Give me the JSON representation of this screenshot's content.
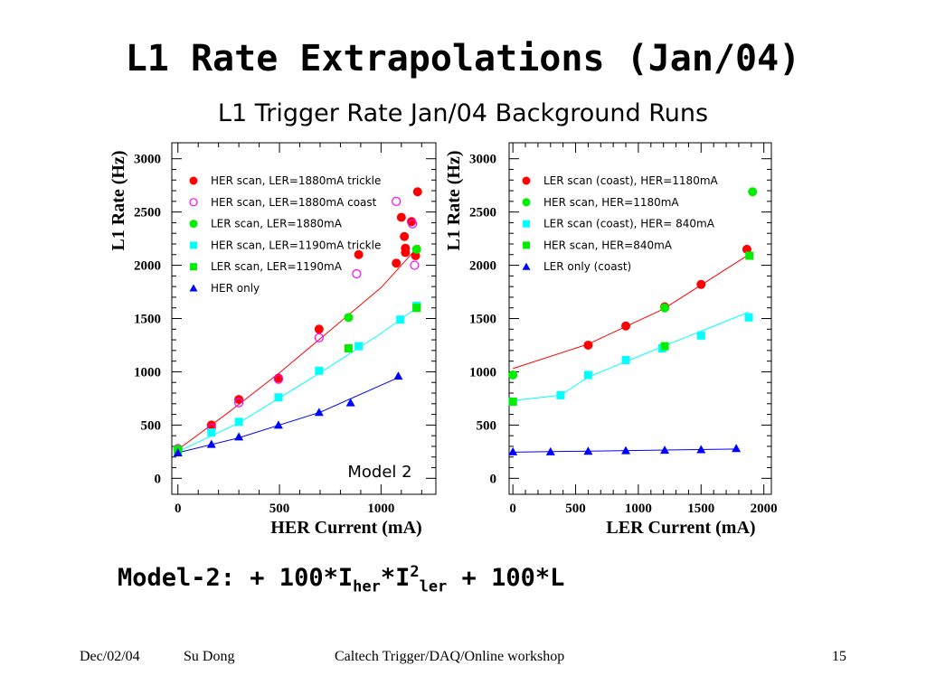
{
  "slide": {
    "title": "L1 Rate Extrapolations (Jan/04)",
    "figure_title": "L1 Trigger Rate Jan/04 Background Runs",
    "formula": {
      "prefix": "Model-2: + 100*I",
      "sub1": "her",
      "mid": "*I",
      "sup": "2",
      "sub2": "ler",
      "suffix": " + 100*L"
    },
    "footer": {
      "date": "Dec/02/04",
      "author": "Su Dong",
      "event": "Caltech Trigger/DAQ/Online workshop",
      "page": "15"
    }
  },
  "chart_data": [
    {
      "type": "scatter",
      "xlabel": "HER Current (mA)",
      "ylabel": "L1 Rate (Hz)",
      "xlim": [
        -30,
        1270
      ],
      "ylim": [
        -150,
        3150
      ],
      "xticks": [
        "0",
        "500",
        "1000"
      ],
      "xtick_values": [
        0,
        500,
        1000
      ],
      "yticks": [
        "0",
        "500",
        "1000",
        "1500",
        "2000",
        "2500",
        "3000"
      ],
      "ytick_values": [
        0,
        500,
        1000,
        1500,
        2000,
        2500,
        3000
      ],
      "legend_position": "top-left",
      "annotation": "Model 2",
      "series": [
        {
          "name": "HER scan, LER=1880mA trickle",
          "color": "#ff0000",
          "marker": "circle",
          "points": [
            [
              0,
              270
            ],
            [
              165,
              500
            ],
            [
              300,
              740
            ],
            [
              495,
              940
            ],
            [
              695,
              1400
            ],
            [
              890,
              2100
            ],
            [
              1075,
              2020
            ],
            [
              1100,
              2450
            ],
            [
              1115,
              2270
            ],
            [
              1120,
              2160
            ],
            [
              1120,
              2120
            ],
            [
              1150,
              2410
            ],
            [
              1170,
              2090
            ],
            [
              1180,
              2690
            ]
          ]
        },
        {
          "name": "HER scan, LER=1880mA coast",
          "color": "#ff00ff",
          "marker": "hollow-circle",
          "points": [
            [
              0,
              280
            ],
            [
              165,
              470
            ],
            [
              300,
              710
            ],
            [
              495,
              930
            ],
            [
              695,
              1320
            ],
            [
              880,
              1920
            ],
            [
              1075,
              2600
            ],
            [
              1155,
              2390
            ],
            [
              1165,
              2000
            ]
          ]
        },
        {
          "name": "LER scan, LER=1880mA",
          "color": "#00ee00",
          "marker": "circle",
          "points": [
            [
              0,
              270
            ],
            [
              840,
              1510
            ],
            [
              1175,
              2150
            ]
          ]
        },
        {
          "name": "HER scan, LER=1190mA trickle",
          "color": "#00ffff",
          "marker": "square",
          "points": [
            [
              0,
              250
            ],
            [
              165,
              430
            ],
            [
              300,
              530
            ],
            [
              495,
              760
            ],
            [
              695,
              1010
            ],
            [
              890,
              1240
            ],
            [
              1095,
              1490
            ],
            [
              1175,
              1620
            ]
          ]
        },
        {
          "name": "LER scan, LER=1190mA",
          "color": "#00ee00",
          "marker": "square",
          "points": [
            [
              0,
              270
            ],
            [
              840,
              1220
            ],
            [
              1175,
              1600
            ]
          ]
        },
        {
          "name": "HER only",
          "color": "#0000ff",
          "marker": "triangle",
          "points": [
            [
              0,
              240
            ],
            [
              165,
              320
            ],
            [
              300,
              390
            ],
            [
              495,
              500
            ],
            [
              695,
              620
            ],
            [
              850,
              710
            ],
            [
              1085,
              960
            ]
          ]
        }
      ],
      "fit_lines": [
        {
          "color": "#ff0000",
          "points": [
            [
              0,
              270
            ],
            [
              250,
              620
            ],
            [
              500,
              990
            ],
            [
              750,
              1390
            ],
            [
              1000,
              1790
            ],
            [
              1190,
              2190
            ]
          ]
        },
        {
          "color": "#00ffff",
          "points": [
            [
              0,
              250
            ],
            [
              300,
              520
            ],
            [
              700,
              990
            ],
            [
              1000,
              1360
            ],
            [
              1190,
              1620
            ]
          ]
        },
        {
          "color": "#0000ff",
          "points": [
            [
              0,
              240
            ],
            [
              300,
              380
            ],
            [
              700,
              620
            ],
            [
              1090,
              950
            ]
          ]
        }
      ]
    },
    {
      "type": "scatter",
      "xlabel": "LER Current (mA)",
      "ylabel": "L1 Rate (Hz)",
      "xlim": [
        -30,
        2060
      ],
      "ylim": [
        -150,
        3150
      ],
      "xticks": [
        "0",
        "500",
        "1000",
        "1500",
        "2000"
      ],
      "xtick_values": [
        0,
        500,
        1000,
        1500,
        2000
      ],
      "yticks": [
        "0",
        "500",
        "1000",
        "1500",
        "2000",
        "2500",
        "3000"
      ],
      "ytick_values": [
        0,
        500,
        1000,
        1500,
        2000,
        2500,
        3000
      ],
      "legend_position": "top-left",
      "series": [
        {
          "name": "LER scan (coast), HER=1180mA",
          "color": "#ff0000",
          "marker": "circle",
          "points": [
            [
              600,
              1250
            ],
            [
              900,
              1430
            ],
            [
              1210,
              1610
            ],
            [
              1500,
              1820
            ],
            [
              1865,
              2150
            ]
          ]
        },
        {
          "name": "HER scan, HER=1180mA",
          "color": "#00ee00",
          "marker": "circle",
          "points": [
            [
              0,
              970
            ],
            [
              1210,
              1600
            ],
            [
              1910,
              2690
            ]
          ]
        },
        {
          "name": "LER scan (coast), HER= 840mA",
          "color": "#00ffff",
          "marker": "square",
          "points": [
            [
              0,
              720
            ],
            [
              380,
              780
            ],
            [
              600,
              970
            ],
            [
              900,
              1110
            ],
            [
              1190,
              1220
            ],
            [
              1500,
              1340
            ],
            [
              1880,
              1510
            ]
          ]
        },
        {
          "name": "HER scan, HER=840mA",
          "color": "#00ee00",
          "marker": "square",
          "points": [
            [
              0,
              720
            ],
            [
              1210,
              1240
            ],
            [
              1885,
              2090
            ]
          ]
        },
        {
          "name": "LER only (coast)",
          "color": "#0000ff",
          "marker": "triangle",
          "points": [
            [
              0,
              250
            ],
            [
              300,
              250
            ],
            [
              600,
              255
            ],
            [
              900,
              260
            ],
            [
              1210,
              265
            ],
            [
              1500,
              270
            ],
            [
              1780,
              280
            ]
          ]
        }
      ],
      "fit_lines": [
        {
          "color": "#ff0000",
          "points": [
            [
              0,
              1030
            ],
            [
              600,
              1260
            ],
            [
              1200,
              1590
            ],
            [
              1880,
              2100
            ]
          ]
        },
        {
          "color": "#00ffff",
          "points": [
            [
              0,
              730
            ],
            [
              380,
              780
            ],
            [
              600,
              950
            ],
            [
              1200,
              1240
            ],
            [
              1880,
              1560
            ]
          ]
        },
        {
          "color": "#0000ff",
          "points": [
            [
              0,
              245
            ],
            [
              1800,
              275
            ]
          ]
        }
      ]
    }
  ]
}
